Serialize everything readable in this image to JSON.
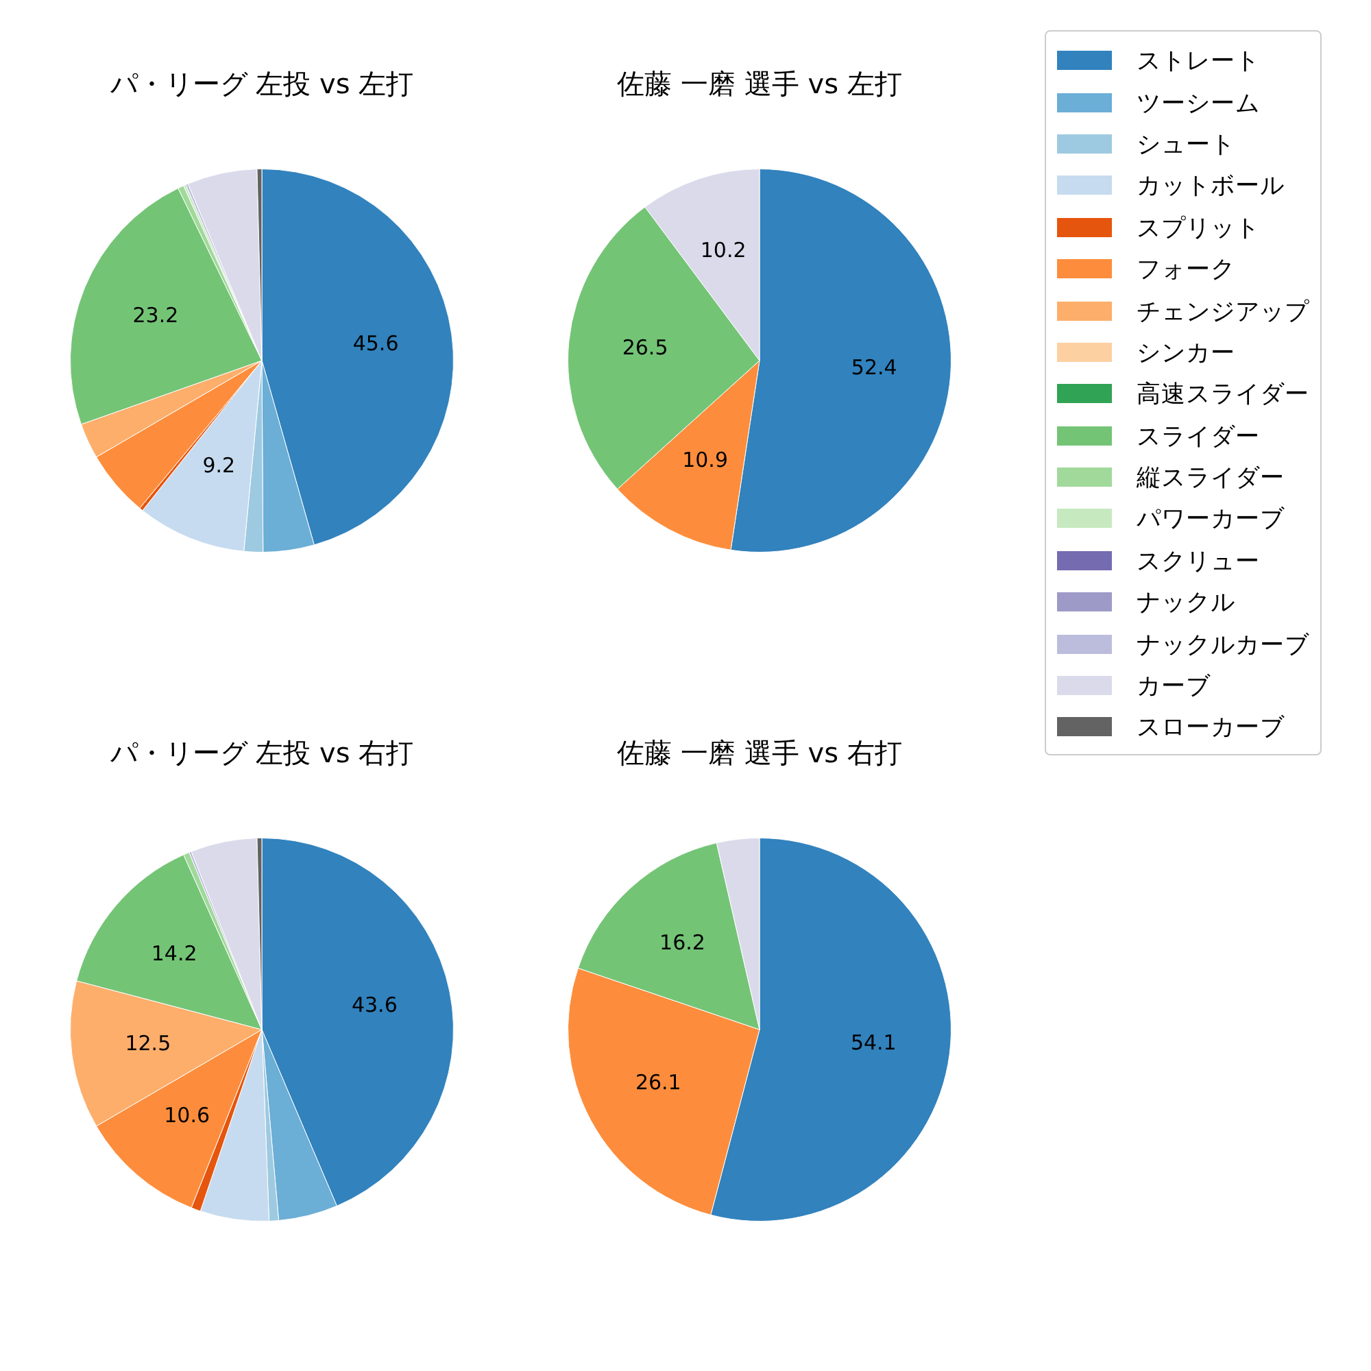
{
  "chart_data": [
    {
      "type": "pie",
      "title": "パ・リーグ 左投 vs 左打",
      "categories": [
        "ストレート",
        "ツーシーム",
        "シュート",
        "カットボール",
        "スプリット",
        "フォーク",
        "チェンジアップ",
        "シンカー",
        "高速スライダー",
        "スライダー",
        "縦スライダー",
        "パワーカーブ",
        "スクリュー",
        "ナックル",
        "ナックルカーブ",
        "カーブ",
        "スローカーブ"
      ],
      "values": [
        45.6,
        4.3,
        1.6,
        9.2,
        0.3,
        5.6,
        3.0,
        0,
        0,
        23.2,
        0.5,
        0.2,
        0,
        0,
        0.2,
        5.9,
        0.4
      ],
      "value_labels": [
        "45.6",
        null,
        null,
        "9.2",
        null,
        null,
        null,
        null,
        null,
        "23.2",
        null,
        null,
        null,
        null,
        null,
        null,
        null
      ],
      "legend": "right",
      "colors": [
        "#3182bd",
        "#6baed6",
        "#9ecae1",
        "#c6dbef",
        "#e6550d",
        "#fd8d3c",
        "#fdae6b",
        "#fdd0a2",
        "#31a354",
        "#74c476",
        "#a1d99b",
        "#c7e9c0",
        "#756bb1",
        "#9e9ac8",
        "#bcbddc",
        "#dadaeb",
        "#636363"
      ]
    },
    {
      "type": "pie",
      "title": "佐藤 一磨 選手 vs 左打",
      "categories": [
        null,
        null,
        null,
        null
      ],
      "values": [
        52.4,
        10.9,
        26.5,
        10.2
      ],
      "value_labels": [
        "52.4",
        "10.9",
        "26.5",
        "10.2"
      ],
      "colors": [
        "#3182bd",
        "#fd8d3c",
        "#74c476",
        "#dadaeb"
      ]
    },
    {
      "type": "pie",
      "title": "パ・リーグ 左投 vs 右打",
      "categories": [
        null,
        null,
        null,
        null,
        null,
        null,
        null,
        null,
        null,
        null,
        null,
        null
      ],
      "values": [
        43.6,
        5.0,
        0.8,
        5.8,
        0.8,
        10.6,
        12.5,
        14.2,
        0.5,
        0.2,
        5.6,
        0.4
      ],
      "value_labels": [
        "43.6",
        null,
        null,
        null,
        null,
        "10.6",
        "12.5",
        "14.2",
        null,
        null,
        null,
        null
      ],
      "colors": [
        "#3182bd",
        "#6baed6",
        "#9ecae1",
        "#c6dbef",
        "#e6550d",
        "#fd8d3c",
        "#fdae6b",
        "#74c476",
        "#a1d99b",
        "#bcbddc",
        "#dadaeb",
        "#636363"
      ]
    },
    {
      "type": "pie",
      "title": "佐藤 一磨 選手 vs 右打",
      "categories": [
        null,
        null,
        null,
        null
      ],
      "values": [
        54.1,
        26.1,
        16.2,
        3.6
      ],
      "value_labels": [
        "54.1",
        "26.1",
        "16.2",
        null
      ],
      "colors": [
        "#3182bd",
        "#fd8d3c",
        "#74c476",
        "#dadaeb"
      ]
    }
  ]
}
